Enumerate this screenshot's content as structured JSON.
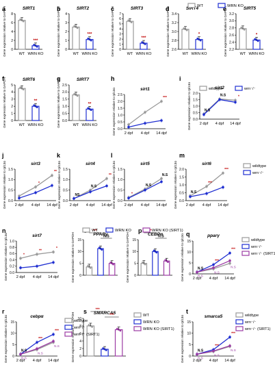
{
  "legend_top": {
    "wt": "WT",
    "ko": "WRN KO"
  },
  "legend_h": {
    "wt": "wildtype",
    "mut": "wrn⁻/⁻"
  },
  "legend_m": {
    "wt": "wildtype",
    "mut": "wrn⁻/⁻"
  },
  "legend_o": {
    "wt": "WT",
    "ko": "WRN KO",
    "ko_sirt1": "WRN KO (SIRT1)"
  },
  "legend_q": {
    "wt": "wildtype",
    "mut": "wrn⁻/⁻",
    "mut_sirt1": "wrn⁻/⁻ (SIRT1)"
  },
  "legend_r": {
    "wt": "wildtype",
    "mut": "wrn⁻/⁻",
    "mut_sirt1": "wrn⁻/⁻ (SIRT1)"
  },
  "legend_s": {
    "wt": "WT",
    "ko": "WRN KO",
    "ko_sirt1": "WRN KO (SIRT1)"
  },
  "legend_t": {
    "wt": "wildtype",
    "mut": "wrn⁻/⁻",
    "mut_sirt1": "wrn⁻/⁻ (SIRT1)"
  },
  "colors": {
    "wt": "#9a9a9a",
    "ko": "#1f2ed1",
    "sirt1": "#9b3aa3",
    "sig": "#c00000"
  },
  "chart_data": [
    {
      "panel": "a",
      "type": "bar",
      "title": "SIRT1",
      "ylabel": "Gene expression relative to GAPDH",
      "categories": [
        "WT",
        "WRN KO"
      ],
      "values": [
        6.5,
        0.8
      ],
      "ylim": [
        0,
        8
      ],
      "yticks": [
        0,
        2,
        4,
        6,
        8
      ],
      "sig": [
        "",
        "***"
      ]
    },
    {
      "panel": "b",
      "type": "bar",
      "title": "SIRT2",
      "ylabel": "Gene expression relative to GAPDH",
      "categories": [
        "WT",
        "WRN KO"
      ],
      "values": [
        2.5,
        1.1
      ],
      "ylim": [
        0,
        4
      ],
      "yticks": [
        0,
        1,
        2,
        3,
        4
      ],
      "sig": [
        "",
        "***"
      ]
    },
    {
      "panel": "c",
      "type": "bar",
      "title": "SIRT3",
      "ylabel": "Gene expression relative to GAPDH",
      "categories": [
        "WT",
        "WRN KO"
      ],
      "values": [
        5.5,
        1.2
      ],
      "ylim": [
        0,
        7
      ],
      "yticks": [
        0,
        1,
        2,
        3,
        4,
        5,
        6,
        7
      ],
      "sig": [
        "",
        "***"
      ]
    },
    {
      "panel": "d",
      "type": "bar",
      "title": "SIRT4",
      "ylabel": "Gene expression relative to GAPDH",
      "categories": [
        "WT",
        "WRN KO"
      ],
      "values": [
        3.05,
        2.82
      ],
      "ylim": [
        2.6,
        3.4
      ],
      "yticks": [
        2.6,
        2.8,
        3.0,
        3.2,
        3.4
      ],
      "sig": [
        "",
        "*"
      ]
    },
    {
      "panel": "e",
      "type": "bar",
      "title": "SIRT5",
      "ylabel": "Gene expression relative to GAPDH",
      "categories": [
        "WT",
        "WRN KO"
      ],
      "values": [
        2.78,
        2.46
      ],
      "ylim": [
        2.2,
        3.2
      ],
      "yticks": [
        2.2,
        2.4,
        2.6,
        2.8,
        3.0,
        3.2
      ],
      "sig": [
        "",
        "*"
      ]
    },
    {
      "panel": "f",
      "type": "bar",
      "title": "SIRT6",
      "ylabel": "Gene expression relative to GAPDH",
      "categories": [
        "WT",
        "WRN KO"
      ],
      "values": [
        4.5,
        2.0
      ],
      "ylim": [
        0,
        5
      ],
      "yticks": [
        0,
        1,
        2,
        3,
        4,
        5
      ],
      "sig": [
        "",
        "**"
      ]
    },
    {
      "panel": "g",
      "type": "bar",
      "title": "SIRT7",
      "ylabel": "Gene expression relative to GAPDH",
      "categories": [
        "WT",
        "WRN KO"
      ],
      "values": [
        1.8,
        0.8
      ],
      "ylim": [
        0,
        2.5
      ],
      "yticks": [
        0.0,
        0.5,
        1.0,
        1.5,
        2.0,
        2.5
      ],
      "sig": [
        "",
        "**"
      ]
    },
    {
      "panel": "h",
      "type": "line",
      "title": "sirt1",
      "ylabel": "Gene expression relative to rpl13α",
      "x": [
        "2 dpf",
        "4 dpf",
        "14 dpf"
      ],
      "ylim": [
        0,
        2.5
      ],
      "yticks": [
        0.0,
        0.5,
        1.0,
        1.5,
        2.0,
        2.5
      ],
      "series": [
        {
          "values": [
            0.3,
            1.2,
            2.0
          ]
        },
        {
          "values": [
            0.12,
            0.4,
            0.6
          ]
        }
      ],
      "sig": [
        "",
        "",
        "***"
      ]
    },
    {
      "panel": "i",
      "type": "line",
      "title": "sirt2",
      "ylabel": "Gene expression relative to rpl13α",
      "x": [
        "2 dpf",
        "4 dpf",
        "14 dpf"
      ],
      "ylim": [
        0,
        2.0
      ],
      "yticks": [
        0.0,
        0.5,
        1.0,
        1.5,
        2.0
      ],
      "series": [
        {
          "values": [
            0.4,
            1.55,
            1.45
          ]
        },
        {
          "values": [
            0.35,
            1.5,
            1.3
          ]
        }
      ],
      "sig": [
        "N.S",
        "N.S",
        "*"
      ]
    },
    {
      "panel": "j",
      "type": "line",
      "title": "sirt3",
      "ylabel": "Gene expression relative to rpl13α",
      "x": [
        "2 dpf",
        "4 dpf",
        "14 dpf"
      ],
      "ylim": [
        0,
        1.5
      ],
      "yticks": [
        0.0,
        0.5,
        1.0,
        1.5
      ],
      "series": [
        {
          "values": [
            0.22,
            0.65,
            1.2
          ]
        },
        {
          "values": [
            0.12,
            0.38,
            0.72
          ]
        }
      ],
      "sig": [
        "",
        "*",
        "**"
      ]
    },
    {
      "panel": "k",
      "type": "line",
      "title": "sirt4",
      "ylabel": "Gene expression relative to rpl13α",
      "x": [
        "2 dpf",
        "4 dpf",
        "14 dpf"
      ],
      "ylim": [
        0,
        1.5
      ],
      "yticks": [
        0.0,
        0.5,
        1.0,
        1.5
      ],
      "series": [
        {
          "values": [
            0.1,
            0.5,
            1.05
          ]
        },
        {
          "values": [
            0.1,
            0.42,
            0.7
          ]
        }
      ],
      "sig": [
        "NS",
        "N.S",
        "**"
      ]
    },
    {
      "panel": "l",
      "type": "line",
      "title": "sirt5",
      "ylabel": "Gene expression relative to rpl13α",
      "x": [
        "2 dpf",
        "4 dpf",
        "14 dpf"
      ],
      "ylim": [
        0,
        1.5
      ],
      "yticks": [
        0.0,
        0.5,
        1.0,
        1.5
      ],
      "series": [
        {
          "values": [
            0.15,
            0.55,
            1.05
          ]
        },
        {
          "values": [
            0.12,
            0.5,
            0.9
          ]
        }
      ],
      "sig": [
        "*",
        "N.S",
        "N.S"
      ]
    },
    {
      "panel": "m",
      "type": "line",
      "title": "sirt6",
      "ylabel": "Gene expression relative to rpl13α",
      "x": [
        "2 dpf",
        "4 dpf",
        "14 dpf"
      ],
      "ylim": [
        0,
        2.0
      ],
      "yticks": [
        0.0,
        0.5,
        1.0,
        1.5,
        2.0
      ],
      "series": [
        {
          "values": [
            0.3,
            0.9,
            1.75
          ]
        },
        {
          "values": [
            0.25,
            0.45,
            0.85
          ]
        }
      ],
      "sig": [
        "N.S",
        "***",
        "***"
      ]
    },
    {
      "panel": "n",
      "type": "line",
      "title": "sirt7",
      "ylabel": "Gene expression relative to rpl13α",
      "x": [
        "2 dpf",
        "4 dpf",
        "14 dpf"
      ],
      "ylim": [
        0,
        1.0
      ],
      "yticks": [
        0.0,
        0.2,
        0.4,
        0.6,
        0.8,
        1.0
      ],
      "series": [
        {
          "values": [
            0.45,
            0.58,
            0.65
          ]
        },
        {
          "values": [
            0.15,
            0.2,
            0.32
          ]
        }
      ],
      "sig": [
        "*",
        "**",
        "*"
      ]
    },
    {
      "panel": "o",
      "type": "bar",
      "title": "PPARγ",
      "ylabel": "Gene expression relative to GAPDH",
      "categories": [
        "WT",
        "WRN KO",
        "WRN KO (SIRT1)"
      ],
      "values": [
        3.5,
        11.2,
        5.0
      ],
      "ylim": [
        0,
        15
      ],
      "yticks": [
        0,
        5,
        10,
        15
      ],
      "brackets": [
        {
          "from": 0,
          "to": 1,
          "label": "***"
        },
        {
          "from": 1,
          "to": 2,
          "label": "N.S"
        }
      ]
    },
    {
      "panel": "p",
      "type": "bar",
      "title": "CEBPα",
      "ylabel": "Gene expression relative to GAPDH",
      "categories": [
        "WT",
        "WRN KO",
        "WRN KO (SIRT1)"
      ],
      "values": [
        5.0,
        10.0,
        6.0
      ],
      "ylim": [
        0,
        15
      ],
      "yticks": [
        0,
        5,
        10,
        15
      ],
      "brackets": [
        {
          "from": 0,
          "to": 1,
          "label": "***"
        },
        {
          "from": 1,
          "to": 2,
          "label": "N.S"
        }
      ]
    },
    {
      "panel": "q",
      "type": "line",
      "title": "pparγ",
      "ylabel": "Gene expression relative to rpl13α",
      "x": [
        "2 dpf",
        "4 dpf",
        "14 dpf"
      ],
      "ylim": [
        0,
        15
      ],
      "yticks": [
        0,
        5,
        10,
        15
      ],
      "series": [
        {
          "values": [
            0.8,
            2.3,
            4.8
          ]
        },
        {
          "values": [
            0.8,
            4.2,
            9.5
          ]
        },
        {
          "values": [
            0.8,
            2.8,
            6.0
          ]
        }
      ],
      "sig": [
        "N.S",
        "***",
        "***"
      ],
      "sig2": [
        "N.S",
        "N.S",
        "N.S"
      ]
    },
    {
      "panel": "r",
      "type": "line",
      "title": "cebpα",
      "ylabel": "Gene expression relative to rpl13α",
      "x": [
        "2 dpf",
        "4 dpf",
        "14 dpf"
      ],
      "ylim": [
        0,
        15
      ],
      "yticks": [
        0,
        5,
        10,
        15
      ],
      "series": [
        {
          "values": [
            0.8,
            2.8,
            6.0
          ]
        },
        {
          "values": [
            0.8,
            6.0,
            9.5
          ]
        },
        {
          "values": [
            0.8,
            3.2,
            6.5
          ]
        }
      ],
      "sig": [
        "N.S",
        "***",
        "***"
      ],
      "sig2": [
        "N.S",
        "N.S",
        "N.S"
      ]
    },
    {
      "panel": "s",
      "type": "bar",
      "title": "SMARCA5",
      "ylabel": "Gene expression relative to GAPDH",
      "categories": [
        "WT",
        "WRN KO",
        "WRN KO (SIRT1)"
      ],
      "values": [
        8.0,
        1.8,
        7.0
      ],
      "ylim": [
        0,
        10
      ],
      "yticks": [
        0,
        2,
        4,
        6,
        8,
        10
      ],
      "brackets": [
        {
          "from": 0,
          "to": 1,
          "label": "***"
        },
        {
          "from": 1,
          "to": 2,
          "label": "***"
        }
      ]
    },
    {
      "panel": "t",
      "type": "line",
      "title": "smarca5",
      "ylabel": "Gene expression relative to rpl13α",
      "x": [
        "2 dpf",
        "4 dpf",
        "14 dpf"
      ],
      "ylim": [
        0,
        15
      ],
      "yticks": [
        0,
        5,
        10,
        15
      ],
      "series": [
        {
          "values": [
            0.8,
            2.0,
            4.2
          ]
        },
        {
          "values": [
            0.8,
            2.8,
            8.3
          ]
        },
        {
          "values": [
            0.8,
            2.2,
            4.5
          ]
        }
      ],
      "sig": [
        "N.S",
        "***",
        "***"
      ],
      "sig2": [
        "N.S",
        "N.S",
        "N.S"
      ]
    }
  ]
}
